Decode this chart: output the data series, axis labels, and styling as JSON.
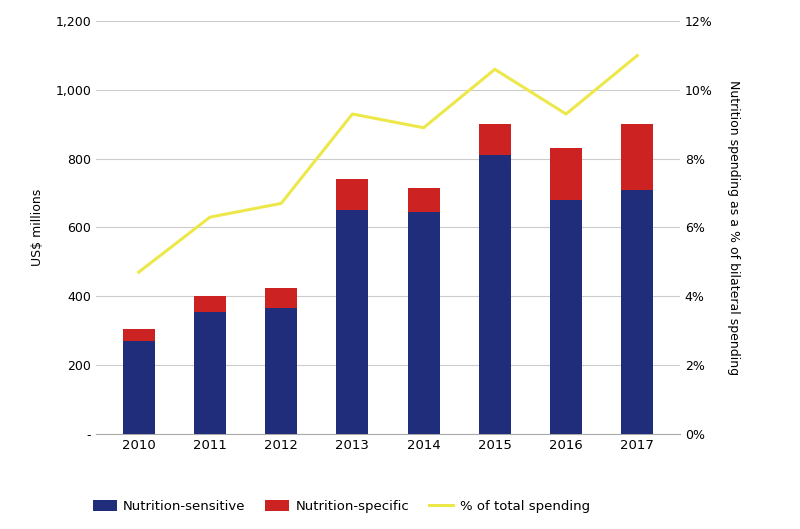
{
  "years": [
    2010,
    2011,
    2012,
    2013,
    2014,
    2015,
    2016,
    2017
  ],
  "nutrition_sensitive": [
    270,
    355,
    365,
    650,
    645,
    810,
    680,
    710
  ],
  "nutrition_specific": [
    35,
    45,
    60,
    90,
    70,
    90,
    150,
    190
  ],
  "pct_total": [
    4.7,
    6.3,
    6.7,
    9.3,
    8.9,
    10.6,
    9.3,
    11.0
  ],
  "bar_color_sensitive": "#1F2D7B",
  "bar_color_specific": "#CC2222",
  "line_color": "#EDE84A",
  "ylim_left": [
    0,
    1200
  ],
  "ylim_right": [
    0,
    12
  ],
  "ylabel_left": "US$ millions",
  "ylabel_right": "Nutrition spending as a % of bilateral spending",
  "legend_labels": [
    "Nutrition-sensitive",
    "Nutrition-specific",
    "% of total spending"
  ],
  "background_color": "#ffffff",
  "bar_width": 0.45,
  "grid_color": "#cccccc",
  "yticks_left": [
    0,
    200,
    400,
    600,
    800,
    1000,
    1200
  ],
  "yticks_right": [
    0,
    2,
    4,
    6,
    8,
    10,
    12
  ]
}
